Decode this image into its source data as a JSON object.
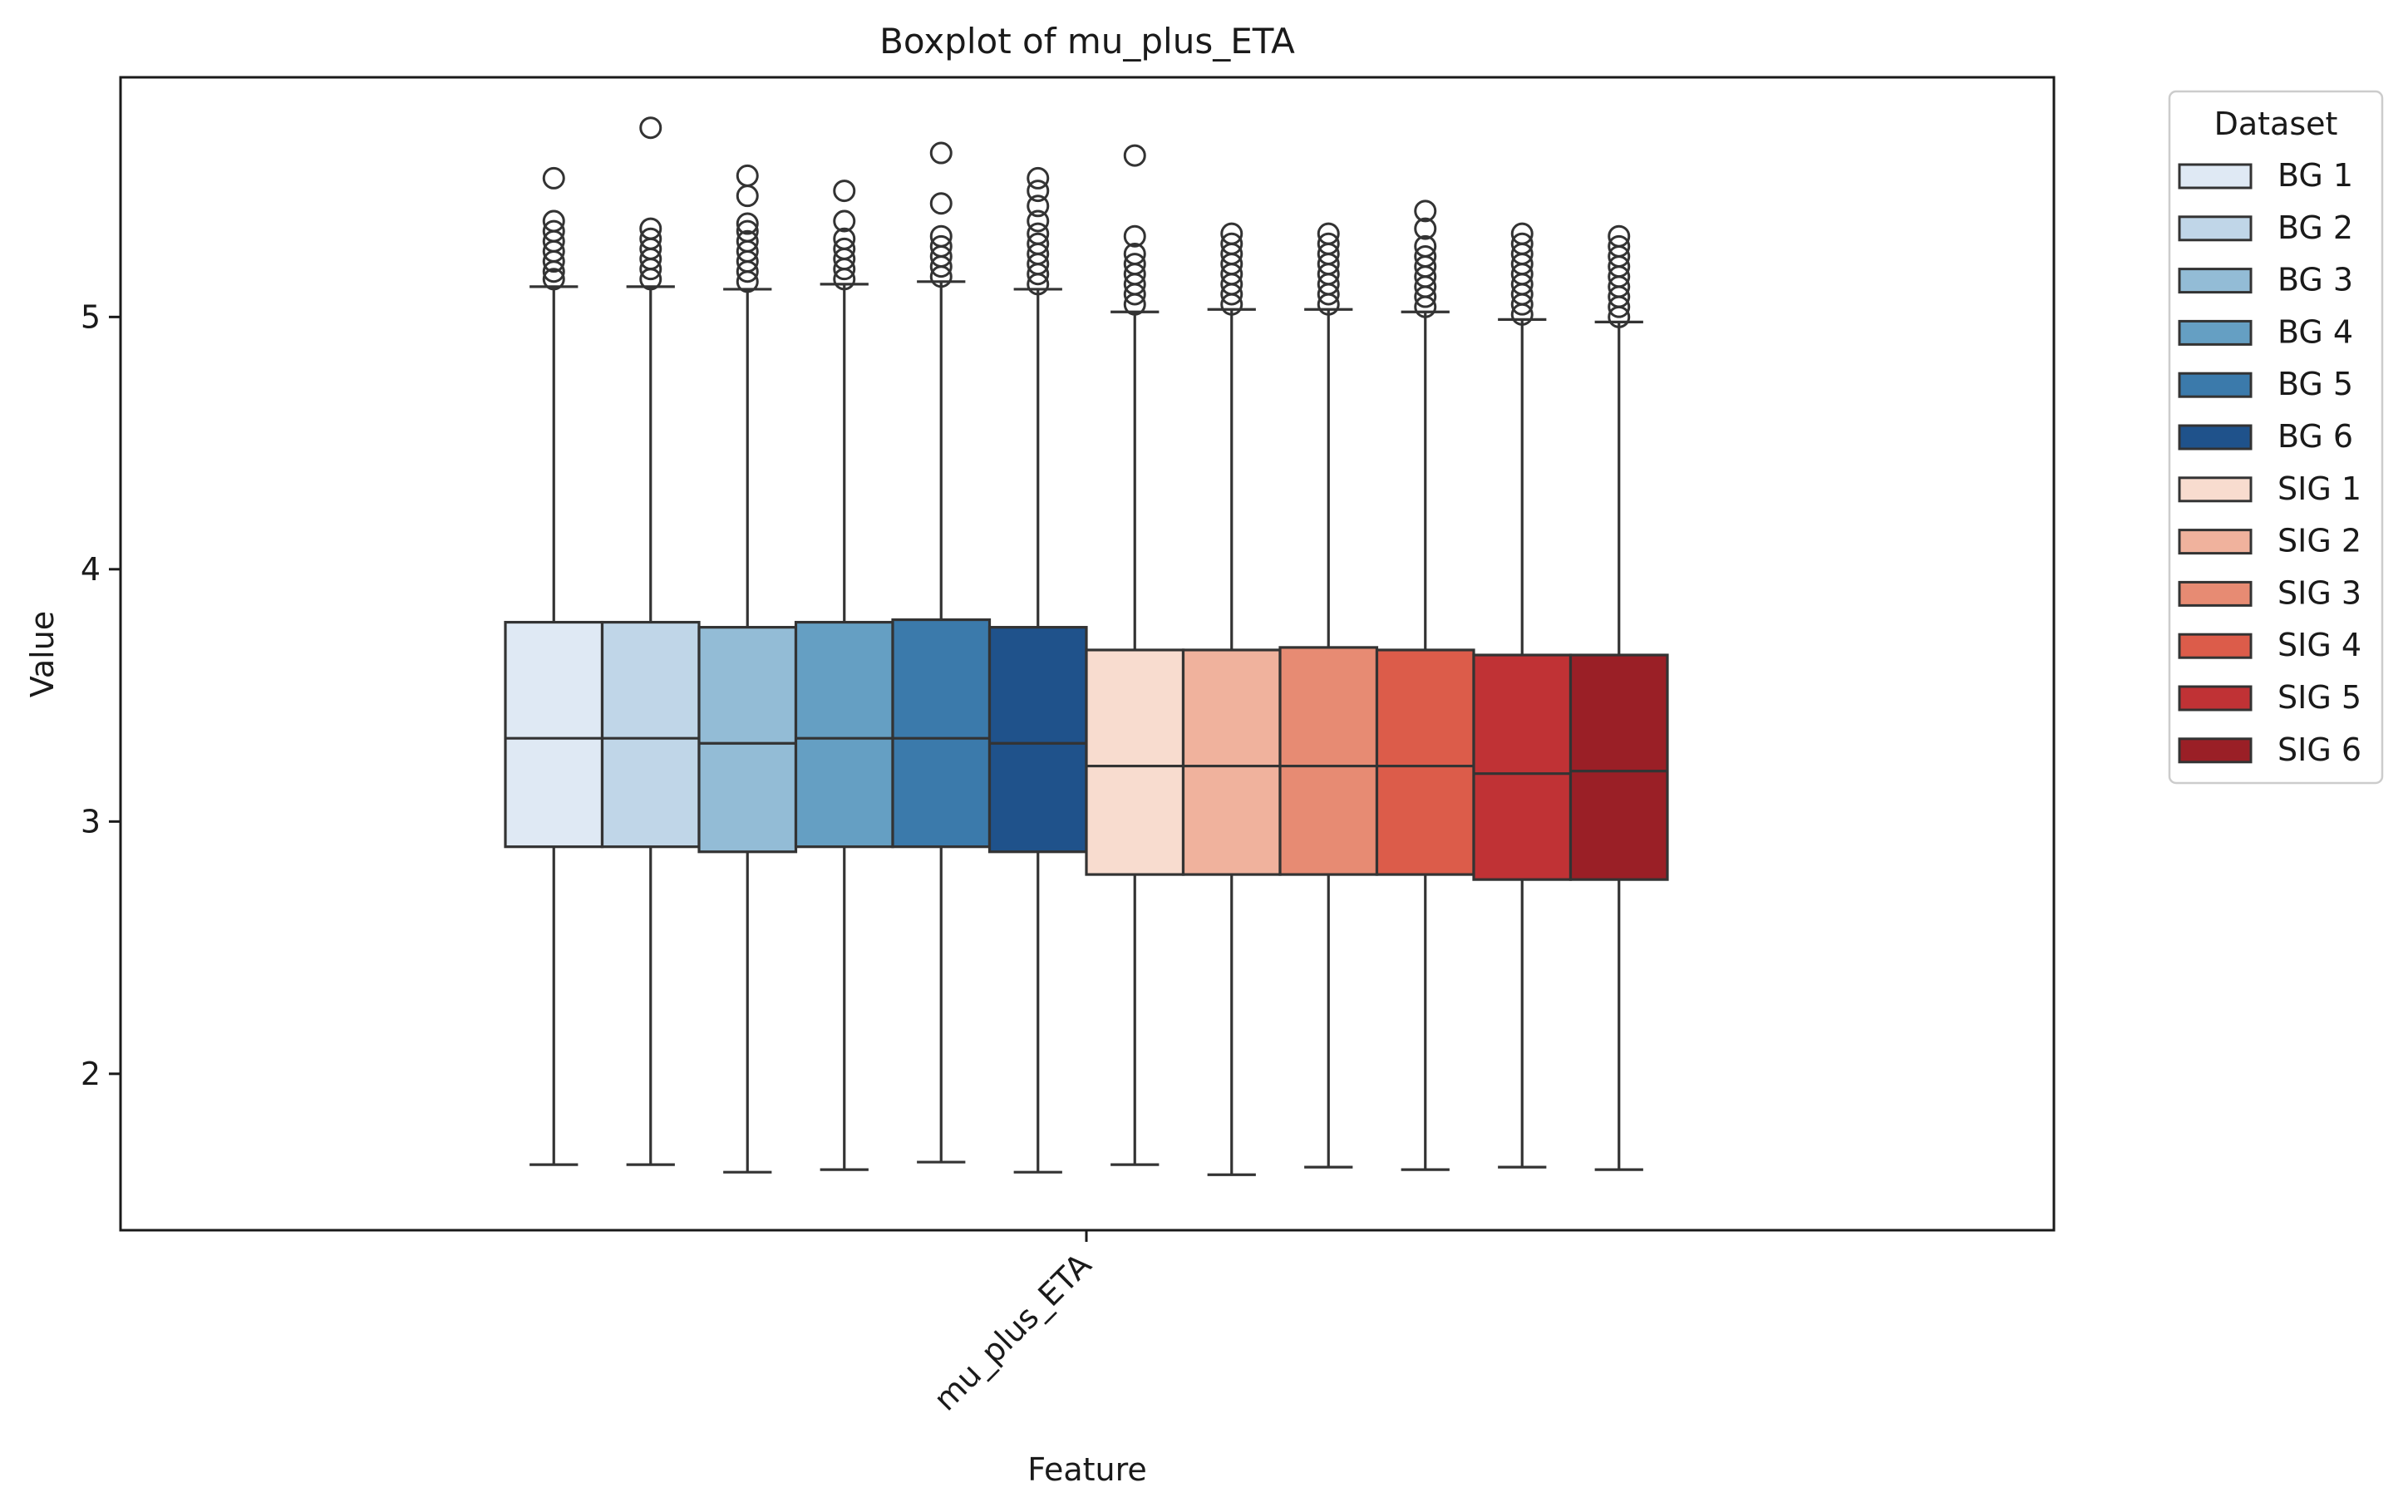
{
  "chart_data": {
    "type": "boxplot",
    "title": "Boxplot of mu_plus_ETA",
    "xlabel": "Feature",
    "ylabel": "Value",
    "categories": [
      "mu_plus_ETA"
    ],
    "ylim": [
      1.38,
      5.95
    ],
    "yticks": [
      2,
      3,
      4,
      5
    ],
    "grid": false,
    "legend": {
      "title": "Dataset",
      "placement": "outside-right-top"
    },
    "series": [
      {
        "name": "BG 1",
        "color": "#dfe9f4",
        "whisker_low": 1.64,
        "q1": 2.9,
        "median": 3.33,
        "q3": 3.79,
        "whisker_high": 5.12,
        "outliers": [
          5.15,
          5.18,
          5.22,
          5.26,
          5.3,
          5.34,
          5.38,
          5.55
        ]
      },
      {
        "name": "BG 2",
        "color": "#c0d6e8",
        "whisker_low": 1.64,
        "q1": 2.9,
        "median": 3.33,
        "q3": 3.79,
        "whisker_high": 5.12,
        "outliers": [
          5.15,
          5.19,
          5.23,
          5.27,
          5.31,
          5.35,
          5.75
        ]
      },
      {
        "name": "BG 3",
        "color": "#93bcd6",
        "whisker_low": 1.61,
        "q1": 2.88,
        "median": 3.31,
        "q3": 3.77,
        "whisker_high": 5.11,
        "outliers": [
          5.14,
          5.18,
          5.22,
          5.26,
          5.3,
          5.34,
          5.37,
          5.48,
          5.56
        ]
      },
      {
        "name": "BG 4",
        "color": "#659fc3",
        "whisker_low": 1.62,
        "q1": 2.9,
        "median": 3.33,
        "q3": 3.79,
        "whisker_high": 5.13,
        "outliers": [
          5.15,
          5.19,
          5.23,
          5.27,
          5.31,
          5.38,
          5.5
        ]
      },
      {
        "name": "BG 5",
        "color": "#3b7aab",
        "whisker_low": 1.65,
        "q1": 2.9,
        "median": 3.33,
        "q3": 3.8,
        "whisker_high": 5.14,
        "outliers": [
          5.16,
          5.2,
          5.24,
          5.28,
          5.32,
          5.45,
          5.65
        ]
      },
      {
        "name": "BG 6",
        "color": "#1f528b",
        "whisker_low": 1.61,
        "q1": 2.88,
        "median": 3.31,
        "q3": 3.77,
        "whisker_high": 5.11,
        "outliers": [
          5.13,
          5.17,
          5.21,
          5.25,
          5.29,
          5.33,
          5.38,
          5.44,
          5.5,
          5.55
        ]
      },
      {
        "name": "SIG 1",
        "color": "#f8dccf",
        "whisker_low": 1.64,
        "q1": 2.79,
        "median": 3.22,
        "q3": 3.68,
        "whisker_high": 5.02,
        "outliers": [
          5.05,
          5.09,
          5.13,
          5.17,
          5.21,
          5.25,
          5.32,
          5.64
        ]
      },
      {
        "name": "SIG 2",
        "color": "#f0b29d",
        "whisker_low": 1.6,
        "q1": 2.79,
        "median": 3.22,
        "q3": 3.68,
        "whisker_high": 5.03,
        "outliers": [
          5.05,
          5.09,
          5.13,
          5.17,
          5.21,
          5.25,
          5.29,
          5.33
        ]
      },
      {
        "name": "SIG 3",
        "color": "#e78b73",
        "whisker_low": 1.63,
        "q1": 2.79,
        "median": 3.22,
        "q3": 3.69,
        "whisker_high": 5.03,
        "outliers": [
          5.05,
          5.09,
          5.13,
          5.17,
          5.21,
          5.25,
          5.29,
          5.33
        ]
      },
      {
        "name": "SIG 4",
        "color": "#dc5c4a",
        "whisker_low": 1.62,
        "q1": 2.79,
        "median": 3.22,
        "q3": 3.68,
        "whisker_high": 5.02,
        "outliers": [
          5.04,
          5.08,
          5.12,
          5.16,
          5.2,
          5.24,
          5.28,
          5.35,
          5.42
        ]
      },
      {
        "name": "SIG 5",
        "color": "#c03235",
        "whisker_low": 1.63,
        "q1": 2.77,
        "median": 3.19,
        "q3": 3.66,
        "whisker_high": 4.99,
        "outliers": [
          5.01,
          5.05,
          5.09,
          5.13,
          5.17,
          5.21,
          5.25,
          5.29,
          5.33
        ]
      },
      {
        "name": "SIG 6",
        "color": "#9a1f26",
        "whisker_low": 1.62,
        "q1": 2.77,
        "median": 3.2,
        "q3": 3.66,
        "whisker_high": 4.98,
        "outliers": [
          5.0,
          5.04,
          5.08,
          5.12,
          5.16,
          5.2,
          5.24,
          5.28,
          5.32
        ]
      }
    ]
  }
}
